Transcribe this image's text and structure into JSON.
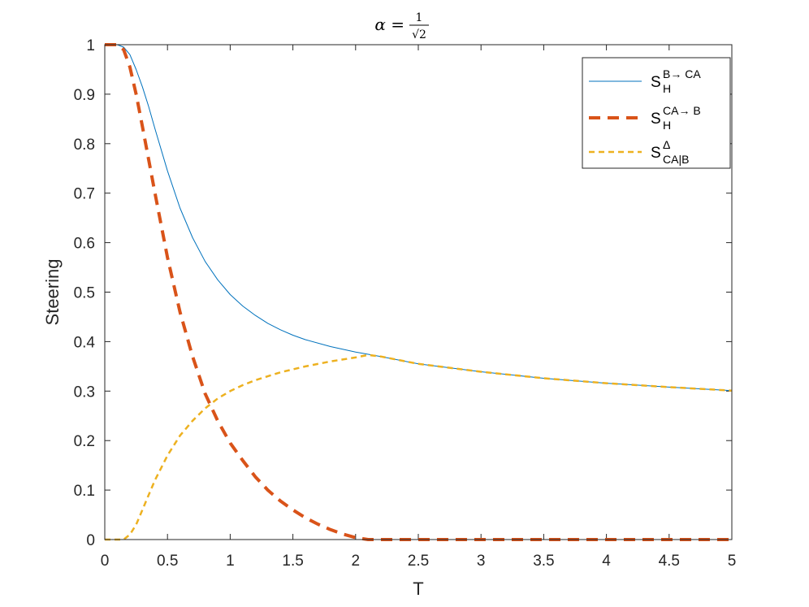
{
  "chart_data": {
    "type": "line",
    "title": {
      "lhs": "α =",
      "numerator": "1",
      "denominator": "√2"
    },
    "xlabel": "T",
    "ylabel": "Steering",
    "xlim": [
      0,
      5
    ],
    "ylim": [
      0,
      1
    ],
    "xticks": [
      0,
      0.5,
      1,
      1.5,
      2,
      2.5,
      3,
      3.5,
      4,
      4.5,
      5
    ],
    "xtick_labels": [
      "0",
      "0.5",
      "1",
      "1.5",
      "2",
      "2.5",
      "3",
      "3.5",
      "4",
      "4.5",
      "5"
    ],
    "yticks": [
      0,
      0.1,
      0.2,
      0.3,
      0.4,
      0.5,
      0.6,
      0.7,
      0.8,
      0.9,
      1
    ],
    "ytick_labels": [
      "0",
      "0.1",
      "0.2",
      "0.3",
      "0.4",
      "0.5",
      "0.6",
      "0.7",
      "0.8",
      "0.9",
      "1"
    ],
    "grid": false,
    "legend_position": "top-right",
    "series": [
      {
        "label_base": "S",
        "label_sub": "H",
        "label_sup": "B→ CA",
        "color": "#0072BD",
        "style": "solid",
        "x": [
          0,
          0.1,
          0.15,
          0.2,
          0.25,
          0.3,
          0.35,
          0.4,
          0.5,
          0.6,
          0.7,
          0.8,
          0.9,
          1.0,
          1.1,
          1.2,
          1.3,
          1.4,
          1.5,
          1.6,
          1.8,
          2.0,
          2.2,
          2.5,
          3.0,
          3.5,
          4.0,
          4.5,
          5.0
        ],
        "y": [
          1.0,
          1.0,
          0.995,
          0.98,
          0.95,
          0.915,
          0.875,
          0.83,
          0.745,
          0.67,
          0.61,
          0.562,
          0.525,
          0.495,
          0.472,
          0.453,
          0.437,
          0.424,
          0.413,
          0.404,
          0.39,
          0.379,
          0.37,
          0.355,
          0.339,
          0.326,
          0.316,
          0.308,
          0.301
        ]
      },
      {
        "label_base": "S",
        "label_sub": "H",
        "label_sup": "CA→ B",
        "color": "#D95319",
        "style": "dashed-thick",
        "x": [
          0,
          0.1,
          0.15,
          0.2,
          0.25,
          0.3,
          0.4,
          0.5,
          0.6,
          0.7,
          0.8,
          0.9,
          1.0,
          1.1,
          1.2,
          1.3,
          1.4,
          1.5,
          1.6,
          1.7,
          1.8,
          1.9,
          2.0,
          2.1,
          2.2,
          3.0,
          4.0,
          5.0
        ],
        "y": [
          1.0,
          1.0,
          0.99,
          0.955,
          0.9,
          0.835,
          0.7,
          0.57,
          0.46,
          0.37,
          0.295,
          0.24,
          0.195,
          0.16,
          0.127,
          0.1,
          0.078,
          0.06,
          0.044,
          0.031,
          0.02,
          0.011,
          0.004,
          0.0,
          0.0,
          0.0,
          0.0,
          0.0
        ]
      },
      {
        "label_base": "S",
        "label_sub": "CA|B",
        "label_sup": "Δ",
        "color": "#EDB120",
        "style": "dashed",
        "x": [
          0,
          0.15,
          0.2,
          0.25,
          0.3,
          0.35,
          0.4,
          0.5,
          0.6,
          0.7,
          0.8,
          0.9,
          1.0,
          1.1,
          1.2,
          1.4,
          1.6,
          1.8,
          2.0,
          2.1,
          2.2,
          2.5,
          3.0,
          3.5,
          4.0,
          4.5,
          5.0
        ],
        "y": [
          0.0,
          0.0,
          0.01,
          0.03,
          0.06,
          0.09,
          0.12,
          0.17,
          0.21,
          0.24,
          0.265,
          0.285,
          0.3,
          0.312,
          0.322,
          0.338,
          0.35,
          0.36,
          0.368,
          0.373,
          0.37,
          0.355,
          0.339,
          0.326,
          0.316,
          0.308,
          0.301
        ]
      }
    ]
  }
}
